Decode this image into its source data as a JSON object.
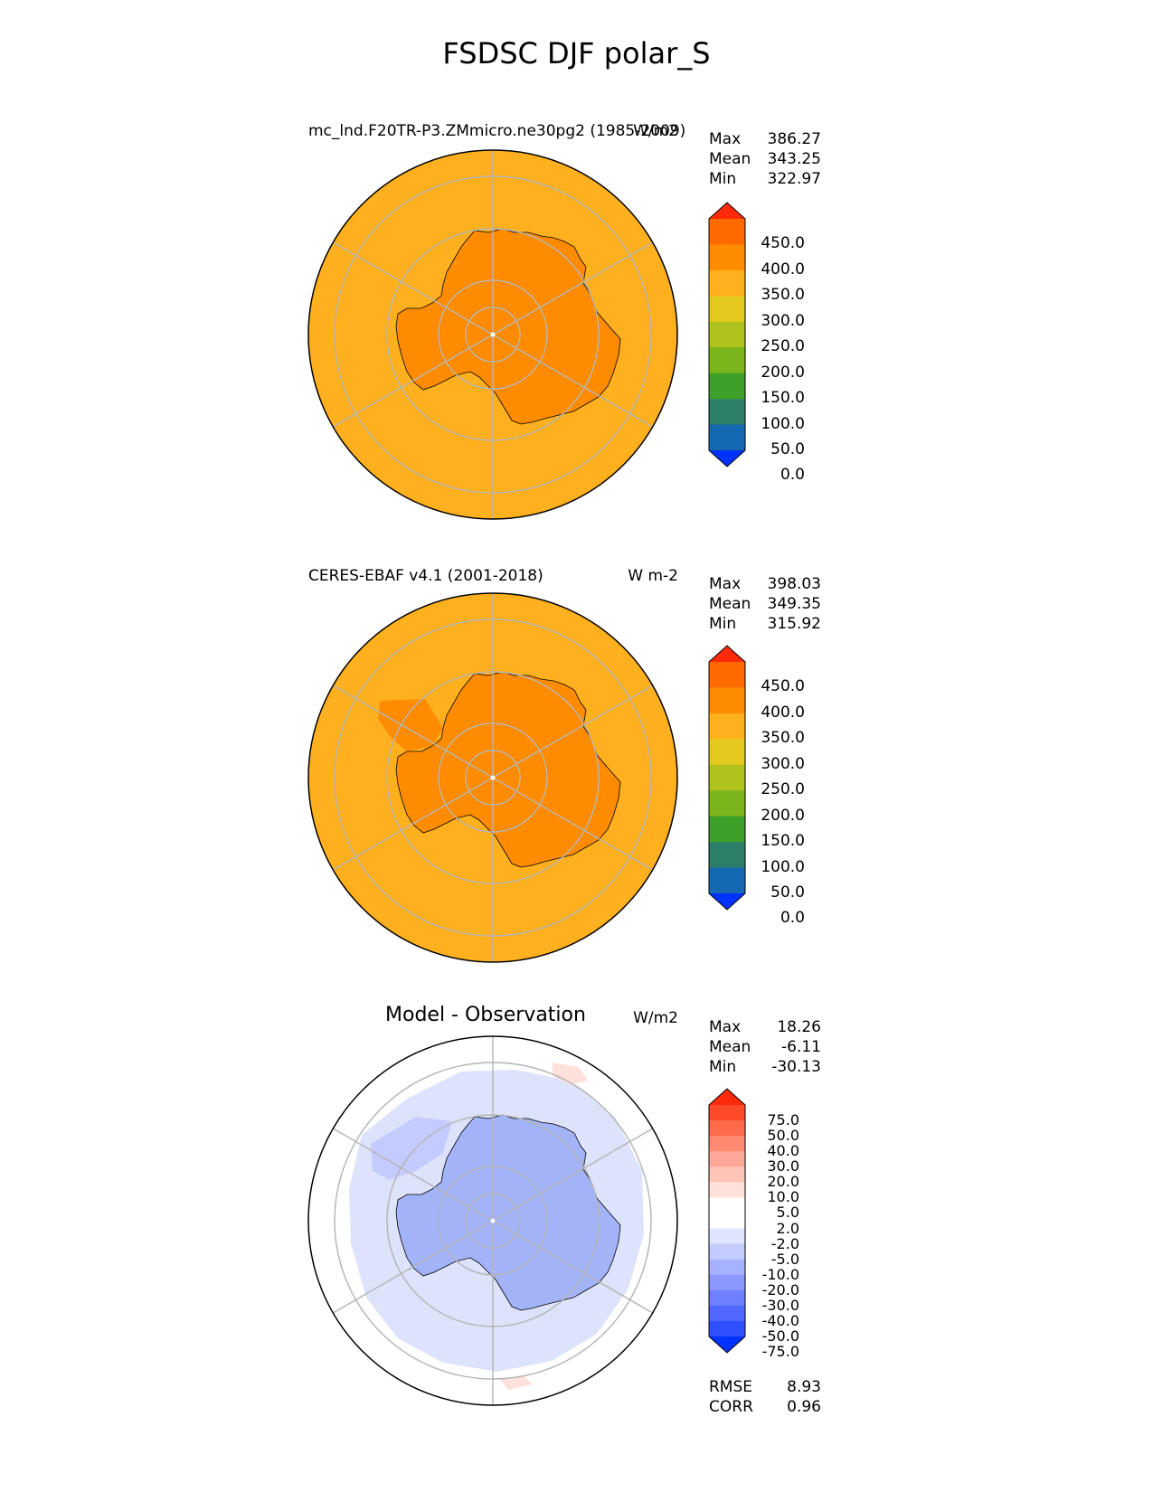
{
  "title": "FSDSC DJF polar_S",
  "panels": [
    {
      "id": "test",
      "left_title": "mc_lnd.F20TR-P3.ZMmicro.ne30pg2 (1985-2009)",
      "right_title": "W/m2",
      "stats": {
        "max_label": "Max",
        "max": "386.27",
        "mean_label": "Mean",
        "mean": "343.25",
        "min_label": "Min",
        "min": "322.97"
      },
      "colorbar": {
        "labels": [
          "450.0",
          "400.0",
          "350.0",
          "300.0",
          "250.0",
          "200.0",
          "150.0",
          "100.0",
          "50.0",
          "0.0"
        ],
        "colors": [
          "#ff2a0a",
          "#ff6a00",
          "#ff8c00",
          "#ffb01e",
          "#e6c91e",
          "#b0c21e",
          "#7cb41c",
          "#3da029",
          "#2d8068",
          "#1469b2",
          "#0033ff"
        ]
      },
      "map": {
        "ocean_color": "#ffb01e",
        "land_color": "#ff8c00"
      }
    },
    {
      "id": "reference",
      "left_title": "CERES-EBAF v4.1 (2001-2018)",
      "right_title": "W m-2",
      "stats": {
        "max_label": "Max",
        "max": "398.03",
        "mean_label": "Mean",
        "mean": "349.35",
        "min_label": "Min",
        "min": "315.92"
      },
      "colorbar": {
        "labels": [
          "450.0",
          "400.0",
          "350.0",
          "300.0",
          "250.0",
          "200.0",
          "150.0",
          "100.0",
          "50.0",
          "0.0"
        ],
        "colors": [
          "#ff2a0a",
          "#ff6a00",
          "#ff8c00",
          "#ffb01e",
          "#e6c91e",
          "#b0c21e",
          "#7cb41c",
          "#3da029",
          "#2d8068",
          "#1469b2",
          "#0033ff"
        ]
      },
      "map": {
        "ocean_color": "#ffb01e",
        "land_color": "#ff8c00"
      }
    },
    {
      "id": "difference",
      "left_title": "Model - Observation",
      "right_title": "W/m2",
      "stats": {
        "max_label": "Max",
        "max": "18.26",
        "mean_label": "Mean",
        "mean": "-6.11",
        "min_label": "Min",
        "min": "-30.13"
      },
      "colorbar": {
        "labels": [
          "75.0",
          "50.0",
          "40.0",
          "30.0",
          "20.0",
          "10.0",
          "5.0",
          "2.0",
          "-2.0",
          "-5.0",
          "-10.0",
          "-20.0",
          "-30.0",
          "-40.0",
          "-50.0",
          "-75.0"
        ],
        "colors": [
          "#ff2a0a",
          "#ff4a2a",
          "#ff6a4a",
          "#ff8a70",
          "#ffa898",
          "#ffc4b8",
          "#ffe0da",
          "#ffffff",
          "#ffffff",
          "#dfe4ff",
          "#c4ccff",
          "#a6b2ff",
          "#8a98ff",
          "#6e80ff",
          "#5068ff",
          "#3050ff",
          "#0033ff"
        ]
      },
      "map": {
        "ocean_color": "#dde3fb",
        "land_color": "#a3b3f8"
      },
      "metrics": {
        "rmse_label": "RMSE",
        "rmse": "8.93",
        "corr_label": "CORR",
        "corr": "0.96"
      }
    }
  ]
}
